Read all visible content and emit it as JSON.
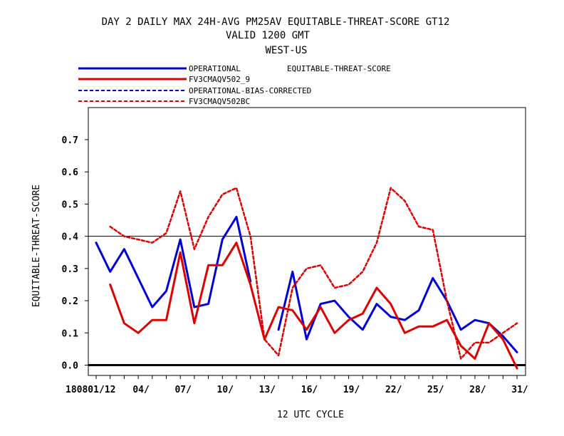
{
  "header": {
    "title_line1": "DAY 2 DAILY MAX   24H-AVG PM25AV EQUITABLE-THREAT-SCORE GT12",
    "title_line2": "VALID 1200 GMT",
    "title_line3": "WEST-US"
  },
  "colors": {
    "blue": "#0000d8",
    "red": "#e00000",
    "black": "#000000"
  },
  "chart_data": {
    "type": "line",
    "title": "DAY 2 DAILY MAX   24H-AVG PM25AV EQUITABLE-THREAT-SCORE GT12",
    "subtitle": [
      "VALID 1200 GMT",
      "WEST-US"
    ],
    "xlabel": "12 UTC CYCLE",
    "ylabel": "EQUITABLE-THREAT-SCORE",
    "legend_title": "EQUITABLE-THREAT-SCORE",
    "legend_position": "top-left, above plot",
    "xlim": [
      0,
      31
    ],
    "ylim": [
      -0.02,
      0.8
    ],
    "yticks": [
      0.0,
      0.1,
      0.2,
      0.3,
      0.4,
      0.5,
      0.6,
      0.7
    ],
    "ytick_labels": [
      "0.0",
      "0.1",
      "0.2",
      "0.3",
      "0.4",
      "0.5",
      "0.6",
      "0.7"
    ],
    "xticks": [
      1,
      4,
      7,
      10,
      13,
      16,
      19,
      22,
      25,
      28,
      31
    ],
    "xtick_labels": [
      "1808 01/12",
      "04/",
      "07/",
      "10/",
      "13/",
      "16/",
      "19/",
      "22/",
      "25/",
      "28/",
      "31/"
    ],
    "reference_lines": [
      0.0,
      0.4
    ],
    "grid": false,
    "series": [
      {
        "name": "OPERATIONAL",
        "color": "#0000d8",
        "dash": "solid",
        "x": [
          1,
          2,
          3,
          4,
          5,
          6,
          7,
          8,
          9,
          10,
          11,
          12,
          13,
          14,
          15,
          16,
          17,
          18,
          19,
          20,
          21,
          22,
          23,
          24,
          25,
          26,
          27,
          28,
          29,
          30,
          31
        ],
        "values": [
          0.38,
          0.29,
          0.36,
          0.27,
          0.18,
          0.23,
          0.39,
          0.18,
          0.19,
          0.39,
          0.46,
          0.26,
          null,
          0.11,
          0.29,
          0.08,
          0.19,
          0.2,
          0.15,
          0.11,
          0.19,
          0.15,
          0.14,
          0.17,
          0.27,
          0.2,
          0.11,
          0.14,
          0.13,
          0.09,
          0.04
        ]
      },
      {
        "name": "FV3CMAQV502_9",
        "color": "#e00000",
        "dash": "solid",
        "x": [
          1,
          2,
          3,
          4,
          5,
          6,
          7,
          8,
          9,
          10,
          11,
          12,
          13,
          14,
          15,
          16,
          17,
          18,
          19,
          20,
          21,
          22,
          23,
          24,
          25,
          26,
          27,
          28,
          29,
          30,
          31
        ],
        "values": [
          null,
          0.25,
          0.13,
          0.1,
          0.14,
          0.14,
          0.35,
          0.13,
          0.31,
          0.31,
          0.38,
          0.25,
          0.08,
          0.18,
          0.17,
          0.11,
          0.18,
          0.1,
          0.14,
          0.16,
          0.24,
          0.19,
          0.1,
          0.12,
          0.12,
          0.14,
          0.06,
          0.02,
          0.13,
          0.08,
          -0.01
        ]
      },
      {
        "name": "OPERATIONAL-BIAS-CORRECTED",
        "color": "#0000d8",
        "dash": "dashed",
        "x": [],
        "values": []
      },
      {
        "name": "FV3CMAQV502BC",
        "color": "#e00000",
        "dash": "dashed",
        "x": [
          1,
          2,
          3,
          4,
          5,
          6,
          7,
          8,
          9,
          10,
          11,
          12,
          13,
          14,
          15,
          16,
          17,
          18,
          19,
          20,
          21,
          22,
          23,
          24,
          25,
          26,
          27,
          28,
          29,
          30,
          31
        ],
        "values": [
          null,
          0.43,
          0.4,
          0.39,
          0.38,
          0.41,
          0.54,
          0.36,
          0.46,
          0.53,
          0.55,
          0.4,
          0.08,
          0.03,
          0.24,
          0.3,
          0.31,
          0.24,
          0.25,
          0.29,
          0.38,
          0.55,
          0.51,
          0.43,
          0.42,
          0.2,
          0.02,
          0.07,
          0.07,
          0.1,
          0.13
        ]
      }
    ]
  }
}
